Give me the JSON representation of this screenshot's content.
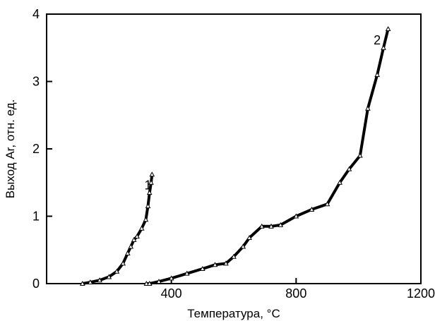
{
  "chart_data": {
    "type": "line",
    "title": "",
    "xlabel": "Температура, °C",
    "ylabel": "Выход Ar, отн. ед.",
    "xlim": [
      0,
      1200
    ],
    "ylim": [
      0,
      4
    ],
    "x_ticks": [
      {
        "value": 0,
        "label": ""
      },
      {
        "value": 400,
        "label": "400"
      },
      {
        "value": 800,
        "label": "800"
      },
      {
        "value": 1200,
        "label": "1200"
      }
    ],
    "y_ticks": [
      {
        "value": 0,
        "label": "0"
      },
      {
        "value": 1,
        "label": "1"
      },
      {
        "value": 2,
        "label": "2"
      },
      {
        "value": 3,
        "label": "3"
      },
      {
        "value": 4,
        "label": "4"
      }
    ],
    "grid": false,
    "series": [
      {
        "name": "1",
        "label_at": [
          325,
          1.4
        ],
        "x": [
          115,
          140,
          170,
          200,
          225,
          245,
          260,
          270,
          280,
          290,
          305,
          318,
          325,
          330,
          335,
          338
        ],
        "y": [
          0.0,
          0.02,
          0.05,
          0.1,
          0.18,
          0.3,
          0.45,
          0.55,
          0.65,
          0.7,
          0.82,
          0.95,
          1.15,
          1.35,
          1.5,
          1.62
        ]
      },
      {
        "name": "2",
        "label_at": [
          1060,
          3.55
        ],
        "x": [
          320,
          330,
          360,
          400,
          450,
          500,
          540,
          575,
          600,
          630,
          650,
          690,
          720,
          750,
          800,
          850,
          900,
          940,
          970,
          1005,
          1030,
          1060,
          1080,
          1095
        ],
        "y": [
          0.0,
          0.0,
          0.03,
          0.08,
          0.15,
          0.22,
          0.28,
          0.3,
          0.4,
          0.55,
          0.68,
          0.85,
          0.85,
          0.87,
          1.0,
          1.1,
          1.18,
          1.5,
          1.7,
          1.9,
          2.6,
          3.1,
          3.5,
          3.78
        ]
      }
    ]
  }
}
